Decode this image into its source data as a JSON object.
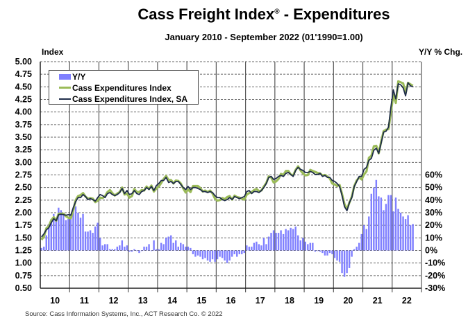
{
  "title": "Cass Freight Index",
  "title_mark": "®",
  "title_suffix": " - Expenditures",
  "subtitle": "January 2010 - September 2022 (01'1990=1.00)",
  "source": "Source: Cass Information Systems, Inc., ACT Research Co. © 2022",
  "chart_data": {
    "type": "bar+line",
    "start": "2010-01",
    "end": "2022-09",
    "frequency": "monthly",
    "y_left": {
      "label": "Index",
      "range": [
        0.5,
        5.0
      ],
      "ticks": [
        "5.00",
        "4.75",
        "4.50",
        "4.25",
        "4.00",
        "3.75",
        "3.50",
        "3.25",
        "3.00",
        "2.75",
        "2.50",
        "2.25",
        "2.00",
        "1.75",
        "1.50",
        "1.25",
        "1.00",
        "0.75",
        "0.50"
      ]
    },
    "y_right": {
      "label": "Y/Y % Chg.",
      "range": [
        -30,
        60
      ],
      "ticks": [
        "60%",
        "50%",
        "40%",
        "30%",
        "20%",
        "10%",
        "0%",
        "-10%",
        "-20%",
        "-30%"
      ]
    },
    "x_ticks": [
      "10",
      "11",
      "12",
      "13",
      "14",
      "15",
      "16",
      "17",
      "18",
      "19",
      "20",
      "21",
      "22"
    ],
    "grid": "horizontal dashed, vertical at year boundaries",
    "legend_position": "top-left",
    "series": [
      {
        "name": "Y/Y",
        "type": "bar",
        "axis": "right",
        "color": "#8080ff",
        "values": [
          2,
          3,
          12,
          21,
          25,
          29,
          26,
          34,
          32,
          28,
          24,
          25,
          29,
          33,
          35,
          30,
          26,
          29,
          15,
          15,
          16,
          14,
          19,
          22,
          10,
          4,
          5,
          5,
          1,
          1,
          1,
          3,
          4,
          8,
          3,
          4,
          -1,
          -1,
          1,
          0,
          -2,
          0,
          3,
          3,
          5,
          0,
          8,
          1,
          1,
          6,
          5,
          10,
          11,
          12,
          6,
          8,
          3,
          6,
          5,
          3,
          3,
          2,
          -3,
          -5,
          -4,
          -5,
          -7,
          -6,
          -8,
          -9,
          -7,
          -9,
          -7,
          -5,
          -6,
          -8,
          -10,
          -8,
          -5,
          -3,
          -5,
          -3,
          -3,
          -2,
          4,
          3,
          3,
          6,
          7,
          5,
          4,
          10,
          5,
          11,
          14,
          16,
          14,
          14,
          16,
          13,
          17,
          16,
          18,
          17,
          19,
          12,
          8,
          10,
          7,
          5,
          6,
          6,
          -1,
          0,
          -1,
          -2,
          -4,
          -4,
          -2,
          -3,
          -6,
          -8,
          -9,
          -18,
          -21,
          -18,
          -14,
          -5,
          1,
          3,
          6,
          13,
          20,
          17,
          27,
          45,
          50,
          56,
          43,
          42,
          32,
          37,
          44,
          44,
          31,
          42,
          33,
          30,
          27,
          25,
          28,
          20,
          21
        ]
      },
      {
        "name": "Cass Expenditures Index",
        "type": "line",
        "axis": "left",
        "color": "#9bbb59",
        "values": [
          1.46,
          1.53,
          1.69,
          1.73,
          1.85,
          1.91,
          1.84,
          1.98,
          1.98,
          1.98,
          1.93,
          1.9,
          1.89,
          2.05,
          2.25,
          2.33,
          2.35,
          2.39,
          2.32,
          2.28,
          2.29,
          2.28,
          2.21,
          2.24,
          2.3,
          2.29,
          2.33,
          2.41,
          2.45,
          2.39,
          2.34,
          2.38,
          2.41,
          2.5,
          2.36,
          2.38,
          2.3,
          2.33,
          2.47,
          2.41,
          2.41,
          2.45,
          2.44,
          2.52,
          2.47,
          2.54,
          2.42,
          2.48,
          2.52,
          2.59,
          2.67,
          2.73,
          2.65,
          2.65,
          2.58,
          2.64,
          2.63,
          2.58,
          2.48,
          2.4,
          2.46,
          2.41,
          2.53,
          2.53,
          2.53,
          2.49,
          2.42,
          2.44,
          2.41,
          2.44,
          2.38,
          2.28,
          2.24,
          2.25,
          2.29,
          2.27,
          2.31,
          2.33,
          2.26,
          2.34,
          2.31,
          2.3,
          2.28,
          2.26,
          2.36,
          2.39,
          2.41,
          2.45,
          2.47,
          2.43,
          2.44,
          2.52,
          2.59,
          2.72,
          2.7,
          2.6,
          2.62,
          2.67,
          2.77,
          2.75,
          2.83,
          2.83,
          2.76,
          2.74,
          2.85,
          2.92,
          2.84,
          2.78,
          2.74,
          2.75,
          2.85,
          2.83,
          2.81,
          2.79,
          2.78,
          2.74,
          2.75,
          2.72,
          2.68,
          2.58,
          2.56,
          2.53,
          2.55,
          2.37,
          2.17,
          2.07,
          2.2,
          2.32,
          2.53,
          2.64,
          2.7,
          2.66,
          2.76,
          2.82,
          3.09,
          3.13,
          3.32,
          3.33,
          3.18,
          3.41,
          3.62,
          3.65,
          3.66,
          4.0,
          4.34,
          4.18,
          4.61,
          4.59,
          4.57,
          4.37,
          4.58,
          4.55,
          4.52
        ]
      },
      {
        "name": "Cass Expenditures Index, SA",
        "type": "line",
        "axis": "left",
        "color": "#1f2d4a",
        "values": [
          1.52,
          1.58,
          1.66,
          1.7,
          1.8,
          1.88,
          1.84,
          1.96,
          1.97,
          1.96,
          1.95,
          1.96,
          1.95,
          2.1,
          2.22,
          2.3,
          2.3,
          2.36,
          2.32,
          2.26,
          2.28,
          2.26,
          2.23,
          2.3,
          2.36,
          2.34,
          2.3,
          2.38,
          2.4,
          2.36,
          2.34,
          2.36,
          2.4,
          2.48,
          2.38,
          2.44,
          2.36,
          2.38,
          2.44,
          2.38,
          2.36,
          2.42,
          2.44,
          2.5,
          2.46,
          2.52,
          2.44,
          2.54,
          2.58,
          2.64,
          2.64,
          2.7,
          2.6,
          2.62,
          2.58,
          2.62,
          2.62,
          2.56,
          2.5,
          2.46,
          2.52,
          2.46,
          2.5,
          2.5,
          2.48,
          2.46,
          2.42,
          2.42,
          2.4,
          2.42,
          2.4,
          2.34,
          2.3,
          2.3,
          2.26,
          2.24,
          2.26,
          2.3,
          2.26,
          2.32,
          2.3,
          2.28,
          2.3,
          2.32,
          2.42,
          2.44,
          2.38,
          2.42,
          2.42,
          2.4,
          2.44,
          2.5,
          2.58,
          2.7,
          2.72,
          2.66,
          2.68,
          2.72,
          2.74,
          2.72,
          2.78,
          2.8,
          2.76,
          2.72,
          2.84,
          2.9,
          2.86,
          2.84,
          2.8,
          2.8,
          2.82,
          2.8,
          2.76,
          2.76,
          2.78,
          2.72,
          2.74,
          2.7,
          2.7,
          2.64,
          2.62,
          2.58,
          2.52,
          2.34,
          2.12,
          2.04,
          2.2,
          2.3,
          2.52,
          2.62,
          2.72,
          2.72,
          2.86,
          2.9,
          3.04,
          3.08,
          3.24,
          3.28,
          3.18,
          3.38,
          3.6,
          3.62,
          3.7,
          4.1,
          4.44,
          4.26,
          4.56,
          4.54,
          4.48,
          4.32,
          4.58,
          4.52,
          4.5
        ]
      }
    ]
  }
}
